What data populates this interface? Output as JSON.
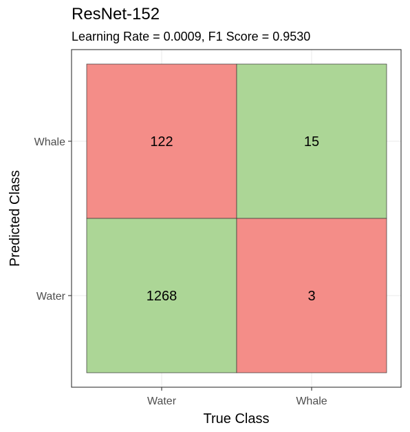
{
  "chart_data": {
    "type": "heatmap",
    "title": "ResNet-152",
    "subtitle": "Learning Rate = 0.0009, F1 Score = 0.9530",
    "xlabel": "True Class",
    "ylabel": "Predicted Class",
    "x_categories": [
      "Water",
      "Whale"
    ],
    "y_categories": [
      "Water",
      "Whale"
    ],
    "cells": [
      {
        "true": "Water",
        "predicted": "Whale",
        "value": 122,
        "correct": false
      },
      {
        "true": "Whale",
        "predicted": "Whale",
        "value": 15,
        "correct": true
      },
      {
        "true": "Water",
        "predicted": "Water",
        "value": 1268,
        "correct": true
      },
      {
        "true": "Whale",
        "predicted": "Water",
        "value": 3,
        "correct": false
      }
    ],
    "colors": {
      "correct": "#acd696",
      "incorrect": "#f48d88",
      "grid": "#ebebeb",
      "panel_border": "#333333",
      "cell_border": "#333333"
    },
    "grid": true,
    "legend": "none"
  }
}
